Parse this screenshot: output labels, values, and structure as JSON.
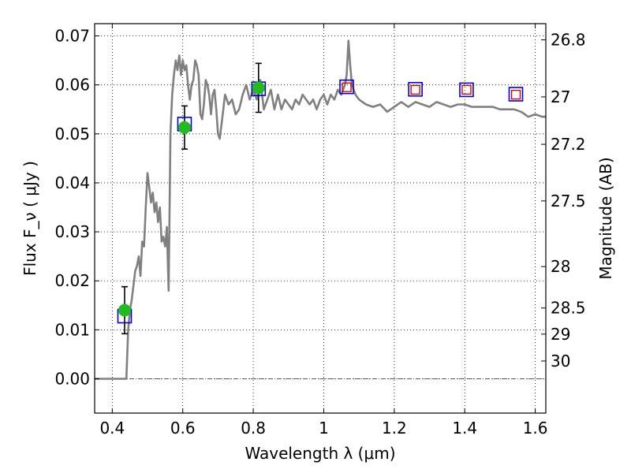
{
  "chart_data": {
    "type": "line",
    "xlabel": "Wavelength  λ (μm)",
    "ylabel": "Flux  F_ν  ( μJy )",
    "y2label": "Magnitude (AB)",
    "xlim": [
      0.35,
      1.63
    ],
    "ylim": [
      -0.007,
      0.0725
    ],
    "grid": true,
    "x_ticks": [
      0.4,
      0.6,
      0.8,
      1.0,
      1.2,
      1.4,
      1.6
    ],
    "x_tick_labels": [
      "0.4",
      "0.6",
      "0.8",
      "1",
      "1.2",
      "1.4",
      "1.6"
    ],
    "y_ticks": [
      0.0,
      0.01,
      0.02,
      0.03,
      0.04,
      0.05,
      0.06,
      0.07
    ],
    "y_tick_labels": [
      "0.00",
      "0.01",
      "0.02",
      "0.03",
      "0.04",
      "0.05",
      "0.06",
      "0.07"
    ],
    "mag_ticks": [
      26.8,
      27.0,
      27.2,
      27.5,
      28.0,
      28.5,
      29.0,
      30.0
    ],
    "mag_tick_labels": [
      "26.8",
      "27",
      "27.2",
      "27.5",
      "28",
      "28.5",
      "29",
      "30"
    ],
    "zero_line": {
      "y": 0.0,
      "color": "#555555"
    },
    "sed_model": {
      "color": "#808080",
      "x": [
        0.35,
        0.42,
        0.43,
        0.44,
        0.445,
        0.45,
        0.455,
        0.46,
        0.465,
        0.47,
        0.475,
        0.48,
        0.485,
        0.49,
        0.495,
        0.5,
        0.505,
        0.51,
        0.515,
        0.52,
        0.525,
        0.53,
        0.535,
        0.54,
        0.545,
        0.55,
        0.555,
        0.56,
        0.565,
        0.57,
        0.575,
        0.58,
        0.585,
        0.59,
        0.595,
        0.6,
        0.605,
        0.61,
        0.615,
        0.62,
        0.625,
        0.63,
        0.635,
        0.64,
        0.645,
        0.65,
        0.655,
        0.66,
        0.665,
        0.67,
        0.675,
        0.68,
        0.685,
        0.69,
        0.695,
        0.7,
        0.705,
        0.71,
        0.72,
        0.73,
        0.74,
        0.75,
        0.76,
        0.77,
        0.78,
        0.79,
        0.8,
        0.81,
        0.82,
        0.83,
        0.84,
        0.85,
        0.86,
        0.87,
        0.88,
        0.89,
        0.9,
        0.91,
        0.92,
        0.93,
        0.94,
        0.95,
        0.96,
        0.97,
        0.98,
        0.99,
        1.0,
        1.01,
        1.02,
        1.03,
        1.04,
        1.05,
        1.06,
        1.065,
        1.07,
        1.075,
        1.08,
        1.09,
        1.1,
        1.12,
        1.14,
        1.16,
        1.18,
        1.2,
        1.22,
        1.24,
        1.26,
        1.28,
        1.3,
        1.32,
        1.34,
        1.36,
        1.38,
        1.4,
        1.42,
        1.44,
        1.46,
        1.48,
        1.5,
        1.52,
        1.54,
        1.56,
        1.58,
        1.6,
        1.62,
        1.63
      ],
      "y": [
        0.0,
        0.0,
        0.0,
        0.0,
        0.01,
        0.014,
        0.016,
        0.019,
        0.022,
        0.023,
        0.025,
        0.021,
        0.028,
        0.027,
        0.035,
        0.042,
        0.039,
        0.036,
        0.038,
        0.034,
        0.036,
        0.032,
        0.035,
        0.028,
        0.029,
        0.027,
        0.031,
        0.018,
        0.05,
        0.058,
        0.062,
        0.065,
        0.063,
        0.066,
        0.062,
        0.065,
        0.063,
        0.064,
        0.06,
        0.057,
        0.06,
        0.061,
        0.065,
        0.064,
        0.062,
        0.054,
        0.053,
        0.056,
        0.061,
        0.06,
        0.058,
        0.054,
        0.058,
        0.059,
        0.055,
        0.05,
        0.049,
        0.052,
        0.058,
        0.056,
        0.057,
        0.054,
        0.055,
        0.058,
        0.06,
        0.057,
        0.059,
        0.057,
        0.061,
        0.055,
        0.057,
        0.059,
        0.055,
        0.058,
        0.055,
        0.057,
        0.056,
        0.055,
        0.057,
        0.056,
        0.058,
        0.057,
        0.056,
        0.057,
        0.055,
        0.057,
        0.058,
        0.056,
        0.058,
        0.057,
        0.059,
        0.058,
        0.06,
        0.062,
        0.069,
        0.064,
        0.06,
        0.058,
        0.057,
        0.056,
        0.0555,
        0.056,
        0.0545,
        0.0555,
        0.0565,
        0.0555,
        0.0565,
        0.056,
        0.0555,
        0.0565,
        0.056,
        0.0555,
        0.056,
        0.056,
        0.0555,
        0.0555,
        0.0555,
        0.0555,
        0.055,
        0.055,
        0.055,
        0.0545,
        0.0535,
        0.054,
        0.0535,
        0.0535
      ]
    },
    "observed_points": {
      "color": "#22bb22",
      "x": [
        0.435,
        0.605,
        0.815
      ],
      "y": [
        0.014,
        0.0513,
        0.0594
      ],
      "yerr": [
        0.0048,
        0.0044,
        0.005
      ]
    },
    "model_photometry": {
      "color": "#0000dd",
      "x": [
        0.435,
        0.605,
        0.815,
        1.065,
        1.26,
        1.405,
        1.545
      ],
      "y": [
        0.0128,
        0.052,
        0.0592,
        0.0596,
        0.0591,
        0.059,
        0.0581
      ]
    },
    "predicted_points": {
      "color": "#dd0000",
      "x": [
        1.065,
        1.26,
        1.405,
        1.545
      ],
      "y": [
        0.0595,
        0.059,
        0.059,
        0.058
      ]
    }
  }
}
